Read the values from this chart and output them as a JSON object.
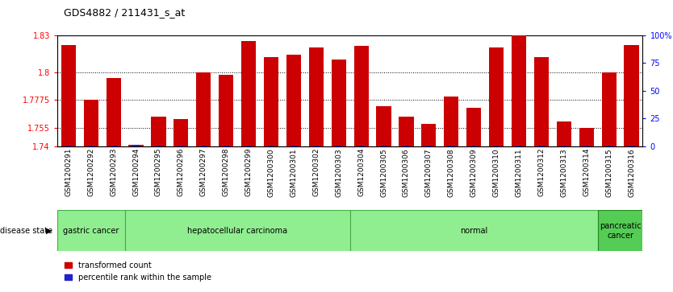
{
  "title": "GDS4882 / 211431_s_at",
  "samples": [
    "GSM1200291",
    "GSM1200292",
    "GSM1200293",
    "GSM1200294",
    "GSM1200295",
    "GSM1200296",
    "GSM1200297",
    "GSM1200298",
    "GSM1200299",
    "GSM1200300",
    "GSM1200301",
    "GSM1200302",
    "GSM1200303",
    "GSM1200304",
    "GSM1200305",
    "GSM1200306",
    "GSM1200307",
    "GSM1200308",
    "GSM1200309",
    "GSM1200310",
    "GSM1200311",
    "GSM1200312",
    "GSM1200313",
    "GSM1200314",
    "GSM1200315",
    "GSM1200316"
  ],
  "red_values": [
    1.822,
    1.7775,
    1.795,
    1.741,
    1.764,
    1.762,
    1.8,
    1.798,
    1.825,
    1.812,
    1.814,
    1.82,
    1.81,
    1.821,
    1.772,
    1.764,
    1.758,
    1.78,
    1.771,
    1.82,
    1.83,
    1.812,
    1.76,
    1.755,
    1.8,
    1.822
  ],
  "blue_values": [
    5,
    5,
    5,
    14,
    5,
    5,
    5,
    5,
    5,
    5,
    5,
    5,
    5,
    5,
    5,
    5,
    5,
    5,
    5,
    5,
    5,
    5,
    5,
    5,
    5,
    5
  ],
  "y_min": 1.74,
  "y_max": 1.83,
  "y_ticks_left": [
    1.74,
    1.755,
    1.7775,
    1.8,
    1.83
  ],
  "y_ticks_right_pct": [
    0,
    25,
    50,
    75,
    100
  ],
  "grid_lines": [
    1.755,
    1.7775,
    1.8
  ],
  "group_boundaries": [
    0,
    3,
    13,
    24,
    26
  ],
  "group_labels": [
    "gastric cancer",
    "hepatocellular carcinoma",
    "normal",
    "pancreatic\ncancer"
  ],
  "group_colors": [
    "#90EE90",
    "#90EE90",
    "#90EE90",
    "#55CC55"
  ],
  "group_edge_colors": [
    "#44AA44",
    "#44AA44",
    "#44AA44",
    "#228822"
  ],
  "bar_color_red": "#CC0000",
  "bar_color_blue": "#2222CC",
  "legend_red": "transformed count",
  "legend_blue": "percentile rank within the sample",
  "xtick_bg_color": "#C8C8C8",
  "title_fontsize": 9,
  "label_fontsize": 7,
  "tick_fontsize": 7
}
